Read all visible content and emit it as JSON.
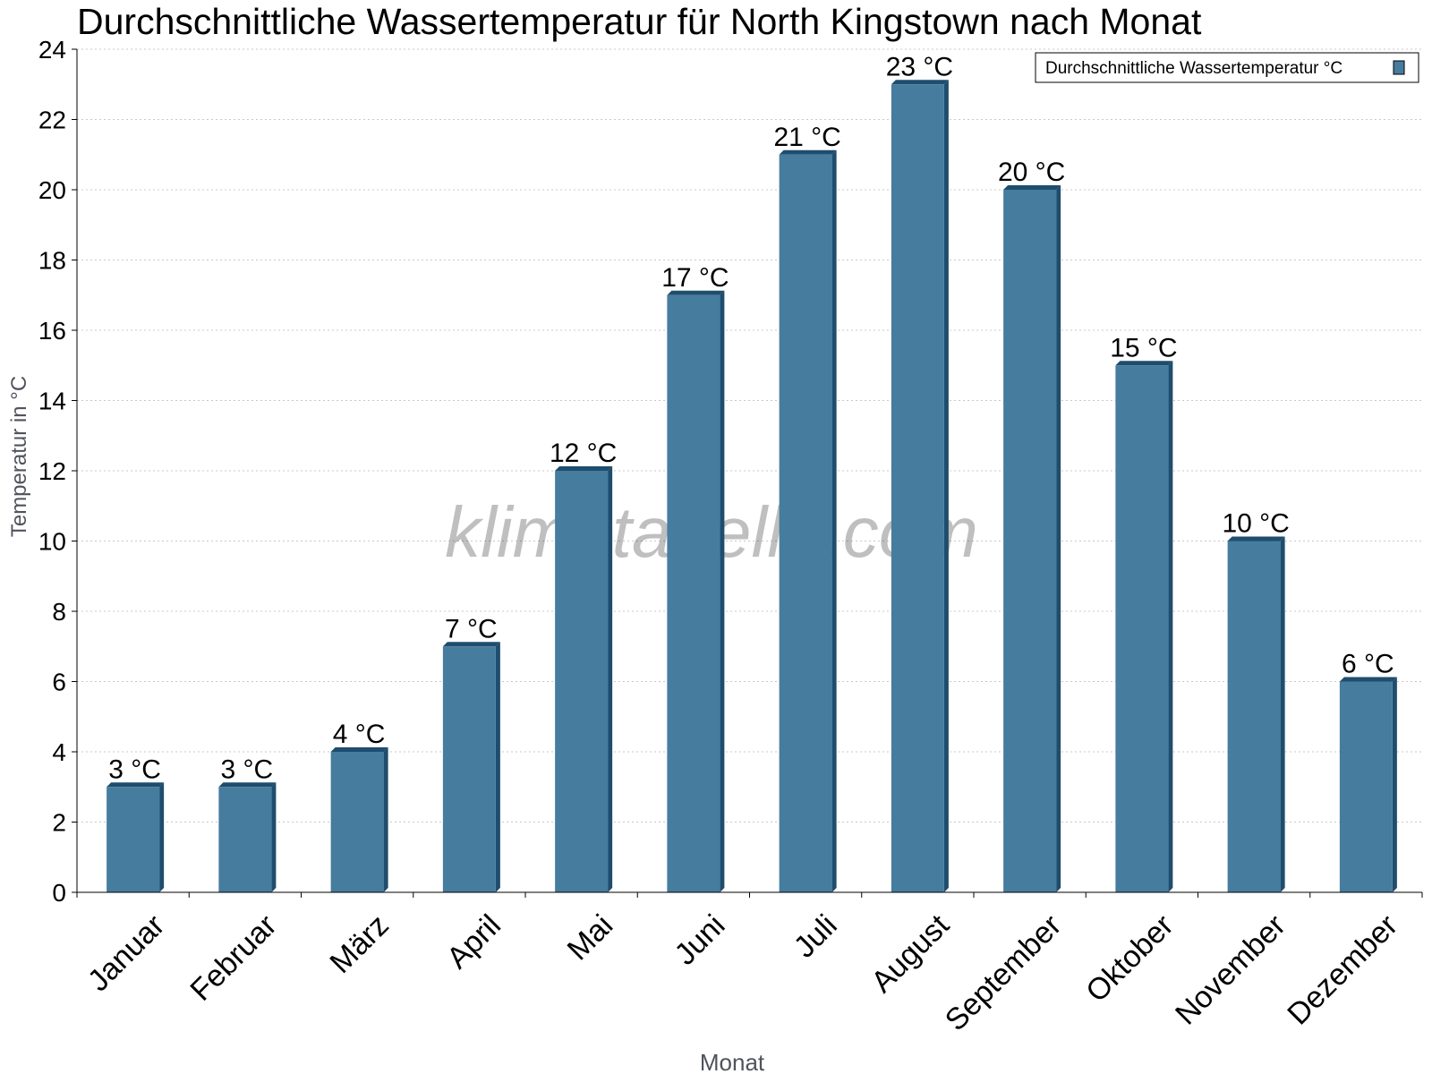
{
  "chart_data": {
    "type": "bar",
    "title": "Durchschnittliche Wassertemperatur für North Kingstown nach Monat",
    "xlabel": "Monat",
    "ylabel": "Temperatur in °C",
    "ylim": [
      0,
      24
    ],
    "yticks": [
      0,
      2,
      4,
      6,
      8,
      10,
      12,
      14,
      16,
      18,
      20,
      22,
      24
    ],
    "grid": true,
    "legend_position": "top-right",
    "unit": "°C",
    "categories": [
      "Januar",
      "Februar",
      "März",
      "April",
      "Mai",
      "Juni",
      "Juli",
      "August",
      "September",
      "Oktober",
      "November",
      "Dezember"
    ],
    "series": [
      {
        "name": "Durchschnittliche Wassertemperatur °C",
        "values": [
          3,
          3,
          4,
          7,
          12,
          17,
          21,
          23,
          20,
          15,
          10,
          6
        ],
        "color": "#467c9e",
        "side_color": "#1e4d6e",
        "top_color": "#1e4d6e"
      }
    ],
    "watermark": "klimatabelle.com"
  }
}
